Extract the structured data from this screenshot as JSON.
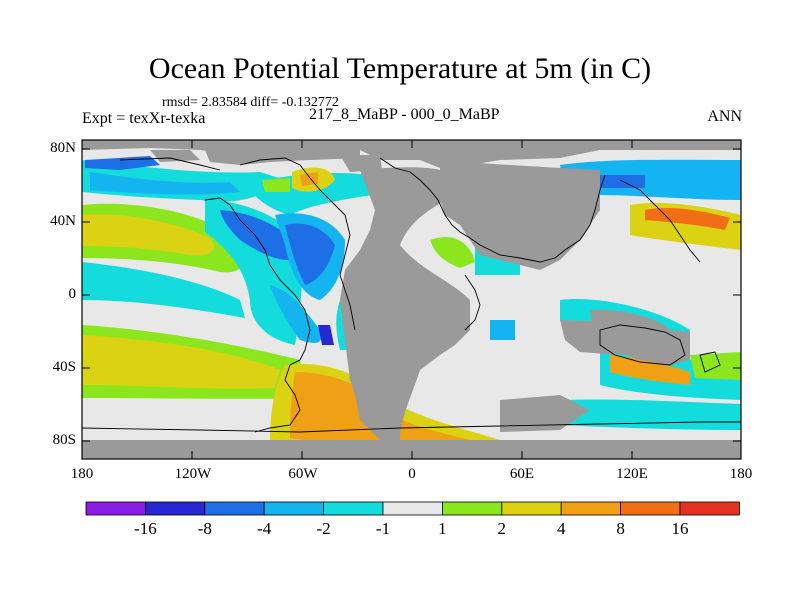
{
  "title": "Ocean Potential Temperature at 5m (in C)",
  "stats": "rmsd= 2.83584  diff= -0.132772",
  "experiment": "Expt = texXr-texka",
  "difference": "217_8_MaBP - 000_0_MaBP",
  "season": "ANN",
  "y_axis": {
    "ticks": [
      "80N",
      "40N",
      "0",
      "40S",
      "80S"
    ]
  },
  "x_axis": {
    "ticks": [
      "180",
      "120W",
      "60W",
      "0",
      "60E",
      "120E",
      "180"
    ]
  },
  "colorbar": {
    "labels": [
      "-16",
      "-8",
      "-4",
      "-2",
      "-1",
      "1",
      "2",
      "4",
      "8",
      "16"
    ],
    "colors": [
      "#8a1ee6",
      "#2828d2",
      "#1e6ee6",
      "#14b4f0",
      "#14dcdc",
      "#e8e8e8",
      "#8ce61e",
      "#dcd214",
      "#f0a014",
      "#f06e14",
      "#e6321e"
    ]
  },
  "map_colors": {
    "land": "#9a9a9a",
    "near_zero": "#e8e8e8",
    "border": "#000000"
  }
}
